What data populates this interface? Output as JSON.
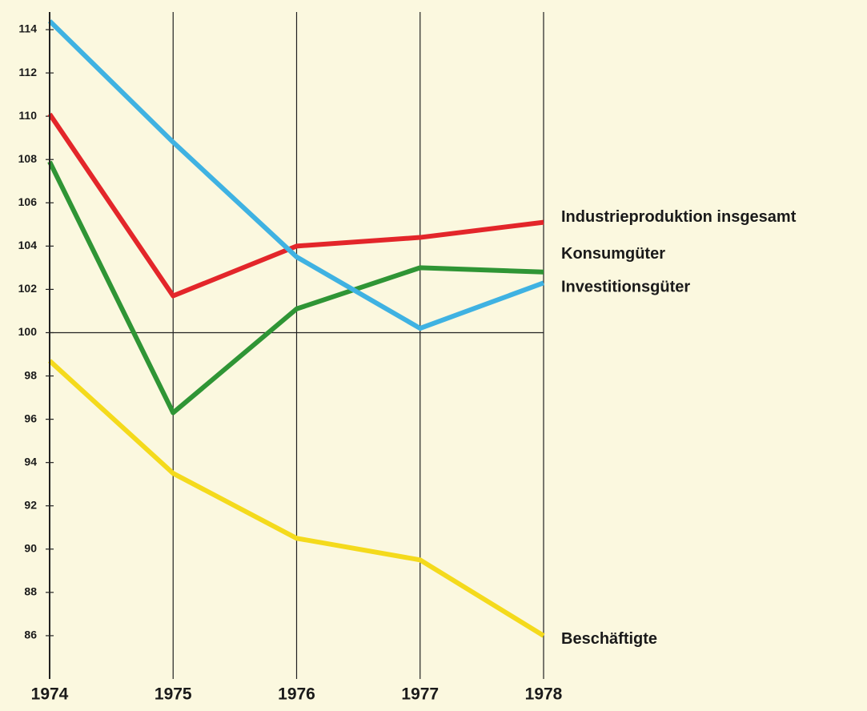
{
  "chart_data": {
    "type": "line",
    "x": [
      1974,
      1975,
      1976,
      1977,
      1978
    ],
    "xlim": [
      1974,
      1978
    ],
    "xticks": [
      1974,
      1975,
      1976,
      1977,
      1978
    ],
    "ylim": [
      84,
      115
    ],
    "yticks": [
      86,
      88,
      90,
      92,
      94,
      96,
      98,
      100,
      102,
      104,
      106,
      108,
      110,
      112,
      114
    ],
    "reference_line": 100,
    "grid": true,
    "series": [
      {
        "name": "Industrieproduktion insgesamt",
        "color": "#e3262a",
        "values": [
          110.1,
          101.7,
          104.0,
          104.4,
          105.1
        ]
      },
      {
        "name": "Konsumgüter",
        "color": "#2f9535",
        "values": [
          107.9,
          96.3,
          101.1,
          103.0,
          102.8
        ]
      },
      {
        "name": "Investitionsgüter",
        "color": "#3fb2e2",
        "values": [
          114.4,
          108.8,
          103.5,
          100.2,
          102.3
        ]
      },
      {
        "name": "Beschäftigte",
        "color": "#f4da1c",
        "values": [
          98.7,
          93.5,
          90.5,
          89.5,
          86.0
        ]
      }
    ]
  }
}
